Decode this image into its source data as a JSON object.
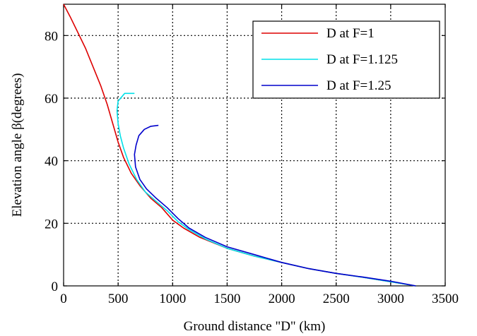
{
  "chart_data": {
    "type": "line",
    "title": "",
    "xlabel": "Ground distance \"D\" (km)",
    "ylabel": "Elevation angle  β(degrees)",
    "xlim": [
      0,
      3500
    ],
    "ylim": [
      0,
      90
    ],
    "xticks": [
      0,
      500,
      1000,
      1500,
      2000,
      2500,
      3000,
      3500
    ],
    "yticks": [
      0,
      20,
      40,
      60,
      80
    ],
    "grid": true,
    "legend_position": "top-right",
    "series": [
      {
        "name": "D at F=1",
        "color": "#dd0000",
        "points": [
          [
            0,
            90
          ],
          [
            60,
            86
          ],
          [
            130,
            81
          ],
          [
            200,
            76
          ],
          [
            270,
            70
          ],
          [
            340,
            64
          ],
          [
            400,
            58
          ],
          [
            450,
            52
          ],
          [
            500,
            46
          ],
          [
            550,
            41
          ],
          [
            620,
            36
          ],
          [
            700,
            32
          ],
          [
            800,
            28
          ],
          [
            900,
            25
          ],
          [
            1000,
            21
          ],
          [
            1100,
            18.5
          ],
          [
            1250,
            15.5
          ],
          [
            1500,
            12
          ],
          [
            1750,
            9.5
          ],
          [
            2000,
            7.5
          ],
          [
            2250,
            5.5
          ],
          [
            2500,
            4
          ],
          [
            2750,
            2.7
          ],
          [
            3000,
            1.3
          ],
          [
            3230,
            0
          ]
        ]
      },
      {
        "name": "D at F=1.125",
        "color": "#00e0e8",
        "points": [
          [
            650,
            61.5
          ],
          [
            560,
            61.5
          ],
          [
            500,
            59
          ],
          [
            490,
            56
          ],
          [
            500,
            52
          ],
          [
            520,
            48
          ],
          [
            550,
            44
          ],
          [
            600,
            39
          ],
          [
            670,
            34
          ],
          [
            750,
            30
          ],
          [
            850,
            27
          ],
          [
            950,
            24
          ],
          [
            1050,
            20.5
          ],
          [
            1150,
            18
          ],
          [
            1300,
            15
          ],
          [
            1500,
            12
          ],
          [
            1750,
            9.5
          ],
          [
            2000,
            7.5
          ],
          [
            2250,
            5.5
          ],
          [
            2500,
            4
          ],
          [
            2750,
            2.7
          ],
          [
            3000,
            1.3
          ],
          [
            3230,
            0
          ]
        ]
      },
      {
        "name": "D at F=1.25",
        "color": "#0000cc",
        "points": [
          [
            870,
            51.3
          ],
          [
            800,
            51
          ],
          [
            740,
            50
          ],
          [
            690,
            48
          ],
          [
            665,
            45
          ],
          [
            650,
            42
          ],
          [
            660,
            38
          ],
          [
            700,
            34
          ],
          [
            760,
            31
          ],
          [
            850,
            28
          ],
          [
            950,
            25
          ],
          [
            1050,
            21.5
          ],
          [
            1150,
            18.5
          ],
          [
            1300,
            15.5
          ],
          [
            1500,
            12.5
          ],
          [
            1750,
            10
          ],
          [
            2000,
            7.5
          ],
          [
            2250,
            5.5
          ],
          [
            2500,
            4
          ],
          [
            2750,
            2.8
          ],
          [
            3000,
            1.5
          ],
          [
            3230,
            0
          ]
        ]
      }
    ]
  }
}
